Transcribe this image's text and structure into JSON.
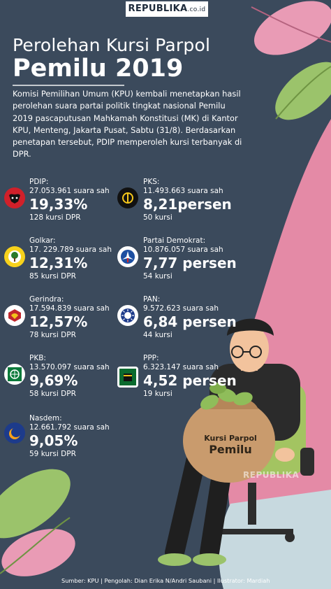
{
  "brand": {
    "name": "REPUBLIKA",
    "domain": ".co.id"
  },
  "title": {
    "line1": "Perolehan Kursi Parpol",
    "line2": "Pemilu 2019"
  },
  "intro": "Komisi Pemilihan Umum (KPU) kembali menetapkan hasil perolehan suara partai politik tingkat nasional Pemilu 2019 pascaputusan Mahkamah Konstitusi (MK) di Kantor KPU, Menteng, Jakarta Pusat, Sabtu (31/8). Berdasarkan penetapan tersebut, PDIP memperoleh kursi terbanyak di DPR.",
  "parties_left": [
    {
      "name": "PDIP:",
      "votes": "27.053.961 suara sah",
      "pct": "19,33%",
      "seats": "128 kursi DPR",
      "logo": "bull-icon"
    },
    {
      "name": "Golkar:",
      "votes": "17. 229.789 suara sah",
      "pct": "12,31%",
      "seats": "85 kursi DPR",
      "logo": "banyan-tree-icon"
    },
    {
      "name": "Gerindra:",
      "votes": "17.594.839 suara sah",
      "pct": "12,57%",
      "seats": "78 kursi DPR",
      "logo": "garuda-icon"
    },
    {
      "name": "PKB:",
      "votes": "13.570.097 suara sah",
      "pct": "9,69%",
      "seats": "58 kursi DPR",
      "logo": "globe-stars-icon"
    },
    {
      "name": "Nasdem:",
      "votes": "12.661.792 suara sah",
      "pct": "9,05%",
      "seats": "59 kursi DPR",
      "logo": "crescent-icon"
    }
  ],
  "parties_right": [
    {
      "name": "PKS:",
      "votes": "11.493.663 suara sah",
      "pct": "8,21persen",
      "seats": "50 kursi",
      "logo": "crescent-pair-icon"
    },
    {
      "name": "Partai Demokrat:",
      "votes": "10.876.057 suara sah",
      "pct": "7,77 persen",
      "seats": "54 kursi",
      "logo": "mercy-star-icon"
    },
    {
      "name": "PAN:",
      "votes": "9.572.623 suara sah",
      "pct": "6,84 persen",
      "seats": "44 kursi",
      "logo": "sun-icon"
    },
    {
      "name": "PPP:",
      "votes": "6.323.147 suara sah",
      "pct": "4,52 persen",
      "seats": "19 kursi",
      "logo": "kaaba-icon"
    }
  ],
  "sack": {
    "line1": "Kursi Parpol",
    "line2": "Pemilu"
  },
  "watermark": "REPUBLIKA",
  "footer": "Sumber: KPU | Pengolah: Dian Erika N/Andri Saubani | Ilustrator: Mardiah",
  "colors": {
    "background": "#3b4a5c",
    "pink": "#e48aa6",
    "leaf_green": "#9bc36b",
    "leaf_pink": "#e99bb5",
    "chair_green": "#a3c461"
  }
}
